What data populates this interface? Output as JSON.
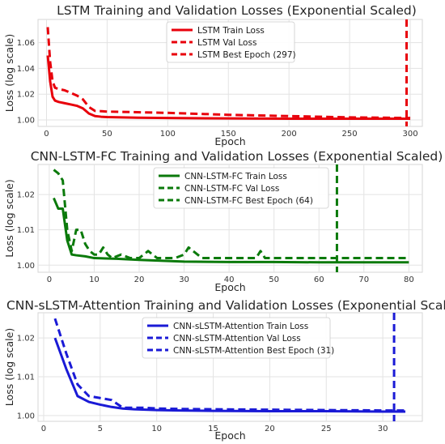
{
  "chart_data": [
    {
      "type": "line",
      "title": "LSTM Training and Validation Losses (Exponential Scaled)",
      "xlabel": "Epoch",
      "ylabel": "Loss (log scale)",
      "xlim": [
        -7,
        310
      ],
      "ylim": [
        0.995,
        1.078
      ],
      "xticks": [
        0,
        50,
        100,
        150,
        200,
        250,
        300
      ],
      "yticks": [
        1.0,
        1.02,
        1.04,
        1.06
      ],
      "yticklabels": [
        "1.00",
        "1.02",
        "1.04",
        "1.06"
      ],
      "grid": true,
      "legend": "top-center",
      "color": "#e8000b",
      "series": [
        {
          "name": "LSTM Train Loss",
          "style": "solid",
          "x": [
            1,
            3,
            5,
            7,
            10,
            15,
            20,
            25,
            30,
            35,
            40,
            45,
            50,
            75,
            100,
            150,
            200,
            250,
            300
          ],
          "y": [
            1.05,
            1.03,
            1.018,
            1.015,
            1.014,
            1.013,
            1.012,
            1.011,
            1.009,
            1.005,
            1.003,
            1.0025,
            1.0022,
            1.0018,
            1.0015,
            1.0012,
            1.001,
            1.001,
            1.001
          ]
        },
        {
          "name": "LSTM Val Loss",
          "style": "dashed",
          "x": [
            1,
            3,
            5,
            7,
            10,
            15,
            20,
            25,
            30,
            35,
            40,
            45,
            50,
            75,
            100,
            150,
            200,
            250,
            300
          ],
          "y": [
            1.072,
            1.045,
            1.03,
            1.025,
            1.024,
            1.023,
            1.021,
            1.019,
            1.016,
            1.01,
            1.007,
            1.0068,
            1.0065,
            1.006,
            1.0055,
            1.004,
            1.003,
            1.002,
            1.0015
          ]
        }
      ],
      "vline": {
        "name": "LSTM Best Epoch (297)",
        "x": 297
      }
    },
    {
      "type": "line",
      "title": "CNN-LSTM-FC Training and Validation Losses (Exponential Scaled)",
      "xlabel": "Epoch",
      "ylabel": "Loss (log scale)",
      "xlim": [
        -2.5,
        83
      ],
      "ylim": [
        0.998,
        1.0285
      ],
      "xticks": [
        0,
        10,
        20,
        30,
        40,
        50,
        60,
        70,
        80
      ],
      "yticks": [
        1.0,
        1.01,
        1.02
      ],
      "yticklabels": [
        "1.00",
        "1.01",
        "1.02"
      ],
      "grid": true,
      "legend": "top-center",
      "color": "#0b7a0b",
      "series": [
        {
          "name": "CNN-LSTM-FC Train Loss",
          "style": "solid",
          "x": [
            1,
            2,
            3,
            4,
            5,
            6,
            8,
            10,
            15,
            20,
            30,
            40,
            50,
            60,
            70,
            80
          ],
          "y": [
            1.019,
            1.016,
            1.016,
            1.007,
            1.003,
            1.0028,
            1.0025,
            1.002,
            1.0018,
            1.0015,
            1.001,
            1.0009,
            1.0009,
            1.0008,
            1.0008,
            1.0008
          ]
        },
        {
          "name": "CNN-LSTM-FC Val Loss",
          "style": "dashed",
          "x": [
            1,
            2,
            3,
            4,
            5,
            6,
            7,
            8,
            9,
            10,
            11,
            12,
            13,
            14,
            16,
            18,
            20,
            22,
            24,
            26,
            28,
            30,
            31,
            32,
            34,
            36,
            38,
            40,
            42,
            44,
            46,
            47,
            48,
            50,
            52,
            55,
            58,
            61,
            64,
            67,
            70,
            73,
            76,
            80
          ],
          "y": [
            1.027,
            1.026,
            1.024,
            1.01,
            1.004,
            1.01,
            1.01,
            1.006,
            1.004,
            1.003,
            1.003,
            1.005,
            1.003,
            1.002,
            1.003,
            1.002,
            1.002,
            1.004,
            1.002,
            1.002,
            1.002,
            1.003,
            1.005,
            1.004,
            1.002,
            1.002,
            1.002,
            1.002,
            1.002,
            1.002,
            1.002,
            1.004,
            1.002,
            1.002,
            1.002,
            1.002,
            1.002,
            1.002,
            1.002,
            1.002,
            1.002,
            1.002,
            1.002,
            1.002
          ]
        }
      ],
      "vline": {
        "name": "CNN-LSTM-FC Best Epoch (64)",
        "x": 64
      }
    },
    {
      "type": "line",
      "title": "CNN-sLSTM-Attention Training and Validation Losses (Exponential Scaled)",
      "xlabel": "Epoch",
      "ylabel": "Loss (log scale)",
      "xlim": [
        -0.5,
        33.5
      ],
      "ylim": [
        0.9985,
        1.0265
      ],
      "xticks": [
        0,
        5,
        10,
        15,
        20,
        25,
        30
      ],
      "yticks": [
        1.0,
        1.01,
        1.02
      ],
      "yticklabels": [
        "1.00",
        "1.01",
        "1.02"
      ],
      "grid": true,
      "legend": "top-center",
      "color": "#1a1ad6",
      "series": [
        {
          "name": "CNN-sLSTM-Attention Train Loss",
          "style": "solid",
          "x": [
            1,
            2,
            3,
            4,
            5,
            6,
            7,
            8,
            9,
            10,
            12,
            15,
            20,
            25,
            30,
            32
          ],
          "y": [
            1.02,
            1.012,
            1.005,
            1.0035,
            1.0028,
            1.0022,
            1.0018,
            1.0016,
            1.0015,
            1.0014,
            1.0013,
            1.0012,
            1.0011,
            1.0011,
            1.001,
            1.001
          ]
        },
        {
          "name": "CNN-sLSTM-Attention Val Loss",
          "style": "dashed",
          "x": [
            1,
            2,
            3,
            4,
            5,
            6,
            7,
            8,
            9,
            10,
            12,
            15,
            20,
            25,
            30,
            32
          ],
          "y": [
            1.025,
            1.016,
            1.008,
            1.005,
            1.0045,
            1.004,
            1.002,
            1.002,
            1.002,
            1.0018,
            1.0017,
            1.0016,
            1.0015,
            1.0014,
            1.0013,
            1.0013
          ]
        }
      ],
      "vline": {
        "name": "CNN-sLSTM-Attention Best Epoch (31)",
        "x": 31
      }
    }
  ]
}
